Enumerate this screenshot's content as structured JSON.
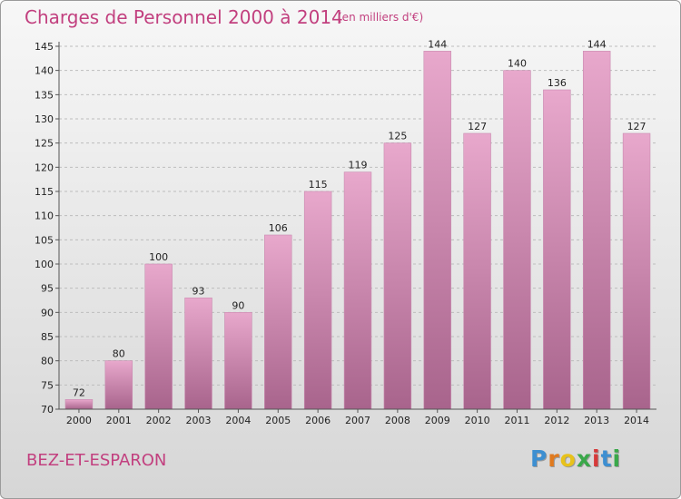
{
  "header": {
    "title": "Charges de Personnel 2000 à 2014",
    "unit": "(en milliers d'€)"
  },
  "footer": {
    "commune": "BEZ-ET-ESPARON",
    "logo_letters": [
      "P",
      "r",
      "o",
      "x",
      "i",
      "t",
      "i"
    ]
  },
  "colors": {
    "accent": "#c2407f",
    "bar_top": "#e8a8cc",
    "bar_bottom": "#a8648c",
    "logo": [
      "#3d8fd1",
      "#e07a1f",
      "#e8c21a",
      "#3aa84a",
      "#d63a3a",
      "#3d8fd1",
      "#3aa84a"
    ]
  },
  "chart_data": {
    "type": "bar",
    "title": "Charges de Personnel 2000 à 2014",
    "subtitle": "(en milliers d'€)",
    "xlabel": "",
    "ylabel": "",
    "categories": [
      "2000",
      "2001",
      "2002",
      "2003",
      "2004",
      "2005",
      "2006",
      "2007",
      "2008",
      "2009",
      "2010",
      "2011",
      "2012",
      "2013",
      "2014"
    ],
    "values": [
      72,
      80,
      100,
      93,
      90,
      106,
      115,
      119,
      125,
      144,
      127,
      140,
      136,
      144,
      127
    ],
    "ylim": [
      70,
      145
    ],
    "yticks": [
      70,
      75,
      80,
      85,
      90,
      95,
      100,
      105,
      110,
      115,
      120,
      125,
      130,
      135,
      140,
      145
    ],
    "grid": "horizontal-dashed",
    "data_labels": true
  }
}
